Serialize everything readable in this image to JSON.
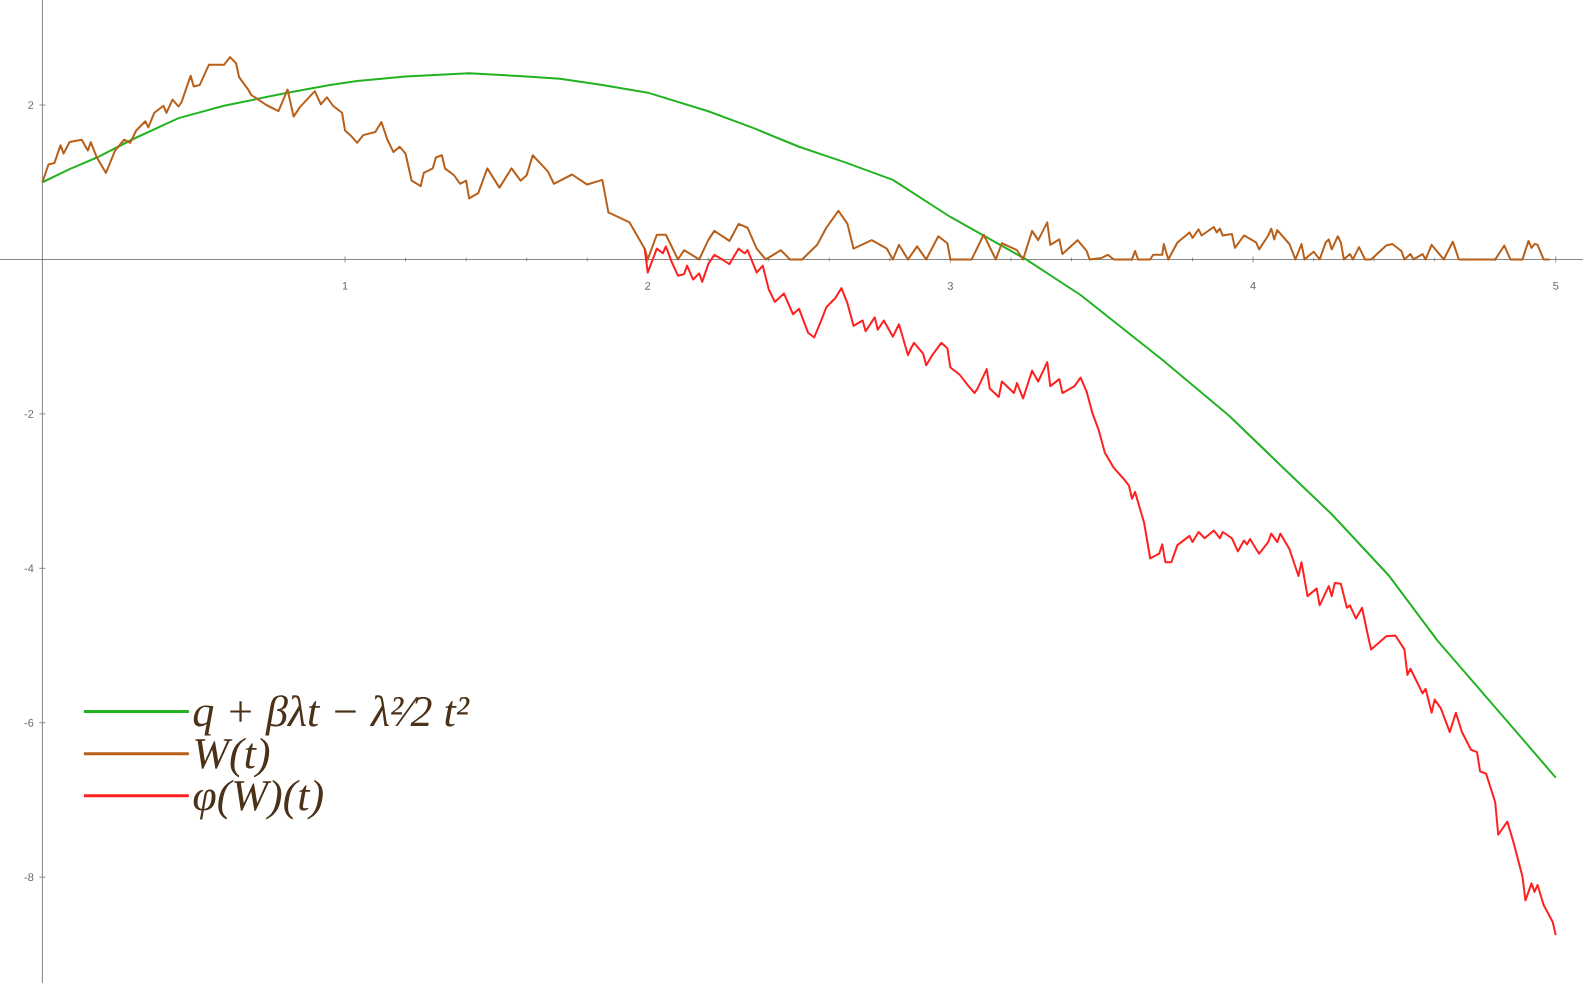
{
  "chart_data": {
    "type": "line",
    "xlim": [
      -0.14,
      5.09
    ],
    "ylim": [
      -9.37,
      3.36
    ],
    "xticks": [
      1,
      2,
      3,
      4,
      5
    ],
    "yticks": [
      -8,
      -6,
      -4,
      -2,
      2
    ],
    "legend": "bottom left",
    "grid": false,
    "marker": "none",
    "line_style": "solid",
    "series": [
      {
        "name": "q + βλt − λ²⁄2 t²",
        "color": "#22b322",
        "x": [
          0,
          0.09,
          0.18,
          0.3,
          0.45,
          0.6,
          0.81,
          0.95,
          1.04,
          1.2,
          1.41,
          1.6,
          1.71,
          1.85,
          2.0,
          2.2,
          2.35,
          2.5,
          2.65,
          2.81,
          3.0,
          3.25,
          3.43,
          3.7,
          3.92,
          4.1,
          4.26,
          4.45,
          4.61,
          4.8,
          5.0
        ],
        "values": [
          1.0,
          1.17,
          1.32,
          1.56,
          1.83,
          1.99,
          2.16,
          2.26,
          2.31,
          2.37,
          2.41,
          2.37,
          2.34,
          2.26,
          2.16,
          1.92,
          1.7,
          1.46,
          1.26,
          1.03,
          0.55,
          0,
          -0.46,
          -1.3,
          -2.02,
          -2.7,
          -3.3,
          -4.1,
          -4.94,
          -5.8,
          -6.71
        ]
      },
      {
        "name": "W(t)",
        "color": "#b8601a",
        "x": [
          0,
          0.02,
          0.04,
          0.06,
          0.07,
          0.09,
          0.13,
          0.15,
          0.16,
          0.18,
          0.21,
          0.24,
          0.27,
          0.29,
          0.31,
          0.34,
          0.35,
          0.37,
          0.4,
          0.41,
          0.43,
          0.45,
          0.46,
          0.49,
          0.5,
          0.52,
          0.55,
          0.6,
          0.62,
          0.64,
          0.65,
          0.68,
          0.69,
          0.74,
          0.78,
          0.81,
          0.83,
          0.85,
          0.9,
          0.92,
          0.94,
          0.96,
          0.99,
          1.0,
          1.02,
          1.04,
          1.06,
          1.1,
          1.12,
          1.14,
          1.16,
          1.18,
          1.2,
          1.22,
          1.25,
          1.26,
          1.29,
          1.3,
          1.32,
          1.33,
          1.36,
          1.38,
          1.4,
          1.41,
          1.44,
          1.47,
          1.51,
          1.55,
          1.58,
          1.6,
          1.62,
          1.67,
          1.69,
          1.75,
          1.8,
          1.85,
          1.87,
          1.94,
          1.99,
          2.0,
          2.03,
          2.06,
          2.1,
          2.12,
          2.17,
          2.2,
          2.22,
          2.27,
          2.3,
          2.33,
          2.36,
          2.39,
          2.44,
          2.47,
          2.51,
          2.56,
          2.59,
          2.63,
          2.66,
          2.68,
          2.74,
          2.79,
          2.81,
          2.83,
          2.86,
          2.89,
          2.92,
          2.96,
          2.99,
          3.0,
          3.07,
          3.11,
          3.15,
          3.17,
          3.22,
          3.24,
          3.27,
          3.29,
          3.32,
          3.33,
          3.36,
          3.37,
          3.42,
          3.45,
          3.46,
          3.5,
          3.52,
          3.54,
          3.6,
          3.61,
          3.62,
          3.66,
          3.67,
          3.7,
          3.705,
          3.72,
          3.75,
          3.79,
          3.8,
          3.82,
          3.83,
          3.87,
          3.88,
          3.89,
          3.9,
          3.93,
          3.94,
          3.97,
          3.98,
          4.01,
          4.02,
          4.05,
          4.06,
          4.07,
          4.08,
          4.12,
          4.14,
          4.16,
          4.17,
          4.2,
          4.22,
          4.24,
          4.25,
          4.26,
          4.28,
          4.29,
          4.3,
          4.32,
          4.33,
          4.35,
          4.37,
          4.39,
          4.44,
          4.46,
          4.49,
          4.5,
          4.52,
          4.53,
          4.56,
          4.57,
          4.59,
          4.63,
          4.66,
          4.68,
          4.8,
          4.83,
          4.85,
          4.89,
          4.91,
          4.92,
          4.93,
          4.94,
          4.96,
          4.98
        ],
        "values": [
          1.0,
          1.23,
          1.25,
          1.48,
          1.37,
          1.52,
          1.55,
          1.41,
          1.52,
          1.32,
          1.12,
          1.41,
          1.55,
          1.51,
          1.67,
          1.79,
          1.71,
          1.9,
          1.99,
          1.9,
          2.07,
          1.98,
          2.04,
          2.38,
          2.24,
          2.26,
          2.52,
          2.52,
          2.62,
          2.54,
          2.36,
          2.2,
          2.13,
          2.0,
          1.92,
          2.2,
          1.85,
          1.97,
          2.18,
          2.01,
          2.1,
          1.99,
          1.9,
          1.67,
          1.6,
          1.51,
          1.61,
          1.65,
          1.78,
          1.55,
          1.39,
          1.46,
          1.37,
          1.02,
          0.95,
          1.12,
          1.18,
          1.32,
          1.35,
          1.18,
          1.09,
          0.98,
          1.02,
          0.79,
          0.86,
          1.18,
          0.93,
          1.18,
          1.02,
          1.09,
          1.35,
          1.14,
          0.98,
          1.1,
          0.97,
          1.03,
          0.61,
          0.48,
          0.14,
          0,
          0.32,
          0.32,
          0,
          0.12,
          0,
          0.25,
          0.37,
          0.24,
          0.46,
          0.41,
          0.14,
          0,
          0.12,
          0,
          0,
          0.19,
          0.41,
          0.63,
          0.46,
          0.14,
          0.25,
          0.14,
          0,
          0.19,
          0,
          0.17,
          0,
          0.3,
          0.21,
          0,
          0,
          0.32,
          0,
          0.21,
          0.12,
          0,
          0.37,
          0.25,
          0.48,
          0.19,
          0.26,
          0.07,
          0.25,
          0.11,
          0,
          0.02,
          0.06,
          0,
          0,
          0.11,
          0,
          0,
          0.06,
          0.06,
          0.2,
          0,
          0.22,
          0.35,
          0.28,
          0.39,
          0.31,
          0.42,
          0.35,
          0.4,
          0.31,
          0.33,
          0.15,
          0.31,
          0.29,
          0.22,
          0.13,
          0.31,
          0.4,
          0.26,
          0.38,
          0.2,
          0,
          0.2,
          0,
          0.1,
          0,
          0.22,
          0.26,
          0.13,
          0.3,
          0.22,
          0,
          0.07,
          0,
          0.16,
          0,
          0,
          0.18,
          0.2,
          0.11,
          0,
          0.07,
          0,
          0.07,
          0,
          0.19,
          0,
          0.23,
          0,
          0,
          0.18,
          0,
          0,
          0.24,
          0.15,
          0.2,
          0.19,
          0,
          0
        ]
      },
      {
        "name": "φ(W)(t)",
        "color": "#ff2020",
        "x": [
          1.99,
          2.0,
          2.03,
          2.05,
          2.06,
          2.08,
          2.1,
          2.12,
          2.13,
          2.15,
          2.17,
          2.18,
          2.2,
          2.22,
          2.25,
          2.27,
          2.3,
          2.32,
          2.33,
          2.36,
          2.38,
          2.4,
          2.42,
          2.45,
          2.48,
          2.5,
          2.53,
          2.55,
          2.57,
          2.59,
          2.62,
          2.64,
          2.66,
          2.68,
          2.71,
          2.72,
          2.75,
          2.76,
          2.78,
          2.81,
          2.83,
          2.86,
          2.87,
          2.88,
          2.91,
          2.92,
          2.94,
          2.97,
          2.99,
          3.0,
          3.03,
          3.06,
          3.08,
          3.09,
          3.12,
          3.13,
          3.16,
          3.17,
          3.21,
          3.22,
          3.24,
          3.27,
          3.29,
          3.32,
          3.33,
          3.36,
          3.37,
          3.41,
          3.43,
          3.45,
          3.47,
          3.49,
          3.51,
          3.54,
          3.57,
          3.59,
          3.6,
          3.61,
          3.64,
          3.66,
          3.69,
          3.7,
          3.71,
          3.73,
          3.75,
          3.79,
          3.8,
          3.82,
          3.84,
          3.87,
          3.89,
          3.9,
          3.93,
          3.95,
          3.97,
          3.98,
          3.99,
          4.01,
          4.02,
          4.05,
          4.06,
          4.08,
          4.09,
          4.12,
          4.15,
          4.16,
          4.18,
          4.21,
          4.22,
          4.25,
          4.26,
          4.27,
          4.29,
          4.31,
          4.32,
          4.34,
          4.36,
          4.38,
          4.39,
          4.44,
          4.47,
          4.5,
          4.51,
          4.52,
          4.56,
          4.57,
          4.59,
          4.6,
          4.62,
          4.65,
          4.67,
          4.69,
          4.72,
          4.74,
          4.75,
          4.77,
          4.8,
          4.81,
          4.84,
          4.86,
          4.89,
          4.9,
          4.92,
          4.93,
          4.94,
          4.96,
          4.99,
          5.0
        ],
        "values": [
          0.14,
          -0.17,
          0.14,
          0.08,
          0.17,
          -0.04,
          -0.21,
          -0.19,
          -0.08,
          -0.26,
          -0.18,
          -0.29,
          -0.06,
          0.06,
          -0.01,
          -0.06,
          0.14,
          0.08,
          0.12,
          -0.17,
          -0.08,
          -0.39,
          -0.55,
          -0.44,
          -0.71,
          -0.64,
          -0.95,
          -1.01,
          -0.82,
          -0.62,
          -0.5,
          -0.37,
          -0.57,
          -0.86,
          -0.79,
          -0.93,
          -0.75,
          -0.91,
          -0.79,
          -1.0,
          -0.84,
          -1.24,
          -1.15,
          -1.08,
          -1.22,
          -1.37,
          -1.24,
          -1.08,
          -1.15,
          -1.4,
          -1.49,
          -1.64,
          -1.73,
          -1.67,
          -1.42,
          -1.67,
          -1.78,
          -1.58,
          -1.73,
          -1.6,
          -1.8,
          -1.44,
          -1.58,
          -1.33,
          -1.64,
          -1.55,
          -1.73,
          -1.64,
          -1.53,
          -1.71,
          -2.0,
          -2.21,
          -2.5,
          -2.7,
          -2.83,
          -2.93,
          -3.1,
          -3.01,
          -3.41,
          -3.87,
          -3.81,
          -3.69,
          -3.92,
          -3.92,
          -3.7,
          -3.58,
          -3.66,
          -3.53,
          -3.61,
          -3.51,
          -3.61,
          -3.53,
          -3.61,
          -3.78,
          -3.64,
          -3.69,
          -3.62,
          -3.75,
          -3.81,
          -3.66,
          -3.55,
          -3.66,
          -3.55,
          -3.75,
          -4.1,
          -3.92,
          -4.36,
          -4.26,
          -4.48,
          -4.23,
          -4.36,
          -4.19,
          -4.2,
          -4.51,
          -4.48,
          -4.65,
          -4.51,
          -4.88,
          -5.05,
          -4.88,
          -4.87,
          -5.05,
          -5.38,
          -5.3,
          -5.62,
          -5.56,
          -5.87,
          -5.7,
          -5.81,
          -6.12,
          -5.87,
          -6.12,
          -6.35,
          -6.38,
          -6.63,
          -6.66,
          -7.03,
          -7.45,
          -7.28,
          -7.54,
          -7.99,
          -8.3,
          -8.08,
          -8.19,
          -8.1,
          -8.36,
          -8.58,
          -8.75
        ]
      }
    ]
  }
}
